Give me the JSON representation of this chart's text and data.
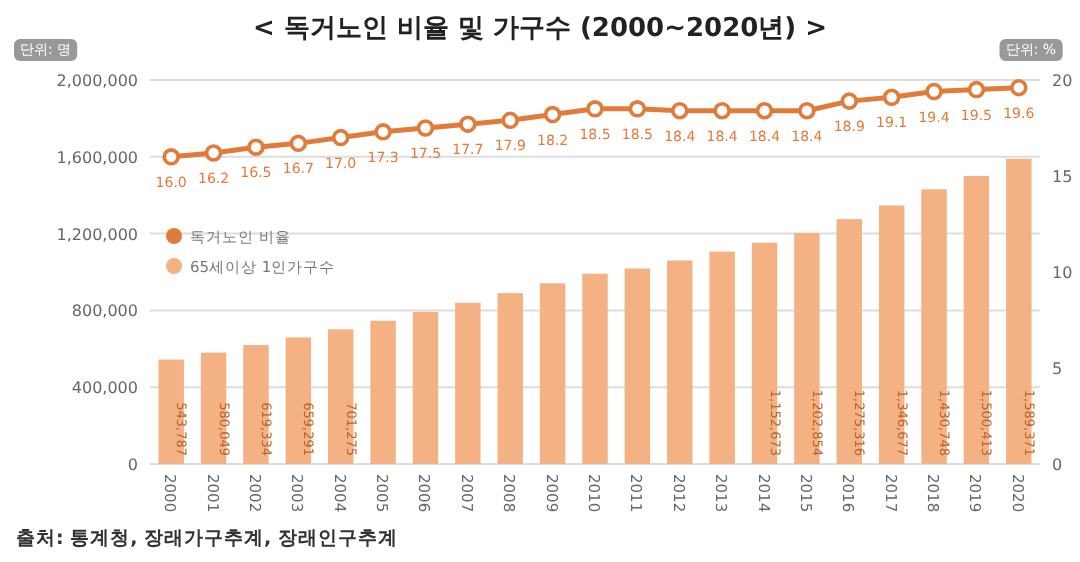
{
  "chart_data": {
    "type": "bar",
    "title": "< 독거노인 비율 및 가구수 (2000~2020년) >",
    "categories": [
      "2000",
      "2001",
      "2002",
      "2003",
      "2004",
      "2005",
      "2006",
      "2007",
      "2008",
      "2009",
      "2010",
      "2011",
      "2012",
      "2013",
      "2014",
      "2015",
      "2016",
      "2017",
      "2018",
      "2019",
      "2020"
    ],
    "series": [
      {
        "name": "65세이상 1인가구수",
        "color": "#f4b183",
        "values": [
          543787,
          580049,
          619334,
          659291,
          701275,
          746000,
          792000,
          840000,
          890000,
          941000,
          991000,
          1018000,
          1060000,
          1106000,
          1152673,
          1202854,
          1275316,
          1346677,
          1430748,
          1500413,
          1589371
        ],
        "value_labels": [
          "543,787",
          "580,049",
          "619,334",
          "659,291",
          "701,275",
          null,
          null,
          null,
          null,
          null,
          null,
          null,
          null,
          null,
          "1,152,673",
          "1,202,854",
          "1,275,316",
          "1,346,677",
          "1,430,748",
          "1,500,413",
          "1,589,371"
        ]
      },
      {
        "name": "독거노인 비율",
        "type": "line",
        "axis": "y2",
        "color": "#e07b39",
        "values": [
          16.0,
          16.2,
          16.5,
          16.7,
          17.0,
          17.3,
          17.5,
          17.7,
          17.9,
          18.2,
          18.5,
          18.5,
          18.4,
          18.4,
          18.4,
          18.4,
          18.9,
          19.1,
          19.4,
          19.5,
          19.6
        ],
        "value_labels": [
          "16.0",
          "16.2",
          "16.5",
          "16.7",
          "17.0",
          "17.3",
          "17.5",
          "17.7",
          "17.9",
          "18.2",
          "18.5",
          "18.5",
          "18.4",
          "18.4",
          "18.4",
          "18.4",
          "18.9",
          "19.1",
          "19.4",
          "19.5",
          "19.6"
        ]
      }
    ],
    "ylim": [
      0,
      2000000
    ],
    "yticks": [
      {
        "value": 0,
        "label": "0"
      },
      {
        "value": 400000,
        "label": "400,000"
      },
      {
        "value": 800000,
        "label": "800,000"
      },
      {
        "value": 1200000,
        "label": "1,200,000"
      },
      {
        "value": 1600000,
        "label": "1,600,000"
      },
      {
        "value": 2000000,
        "label": "2,000,000"
      }
    ],
    "y2lim": [
      0,
      20
    ],
    "y2ticks": [
      0,
      5,
      10,
      15,
      20
    ],
    "grid": "y",
    "legend": "left",
    "marker": "circle",
    "annotations": [
      "단위: 명",
      "단위: %",
      "출처: 통계청, 장래가구추계, 장래인구추계"
    ]
  }
}
